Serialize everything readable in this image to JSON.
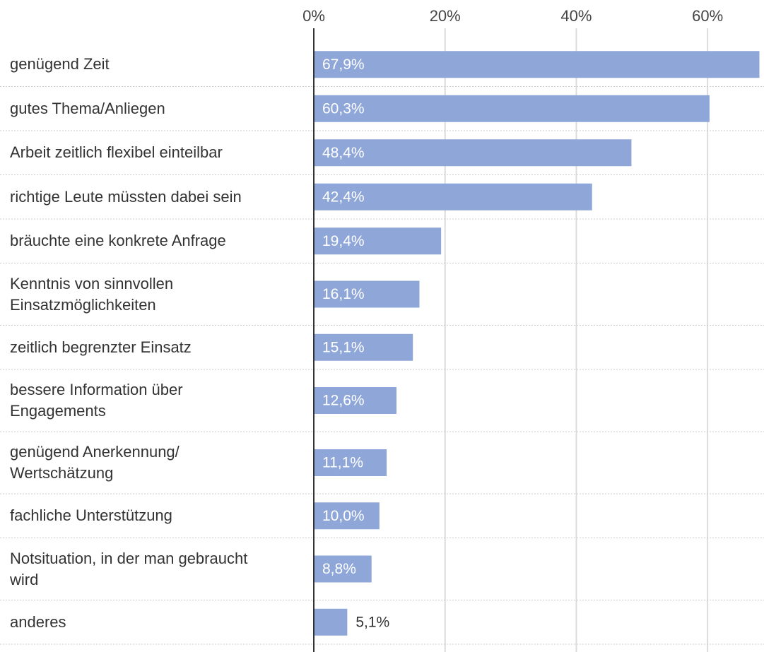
{
  "chart_data": {
    "type": "bar",
    "orientation": "horizontal",
    "categories": [
      "genügend Zeit",
      "gutes Thema/Anliegen",
      "Arbeit zeitlich flexibel einteilbar",
      "richtige Leute müssten dabei sein",
      "bräuchte eine konkrete Anfrage",
      "Kenntnis von sinnvollen\nEinsatzmöglichkeiten",
      "zeitlich begrenzter Einsatz",
      "bessere Information über\nEngagements",
      "genügend Anerkennung/\nWertschätzung",
      "fachliche Unterstützung",
      "Notsituation, in der man gebraucht\nwird",
      "anderes"
    ],
    "values": [
      67.9,
      60.3,
      48.4,
      42.4,
      19.4,
      16.1,
      15.1,
      12.6,
      11.1,
      10.0,
      8.8,
      5.1
    ],
    "value_labels": [
      "67,9%",
      "60,3%",
      "48,4%",
      "42,4%",
      "19,4%",
      "16,1%",
      "15,1%",
      "12,6%",
      "11,1%",
      "10,0%",
      "8,8%",
      "5,1%"
    ],
    "color": "#8fa7d8",
    "xlim": [
      0,
      68.6
    ],
    "xticks": [
      {
        "value": 0,
        "label": "0%"
      },
      {
        "value": 20,
        "label": "20%"
      },
      {
        "value": 40,
        "label": "40%"
      },
      {
        "value": 60,
        "label": "60%"
      }
    ],
    "grid": true
  }
}
